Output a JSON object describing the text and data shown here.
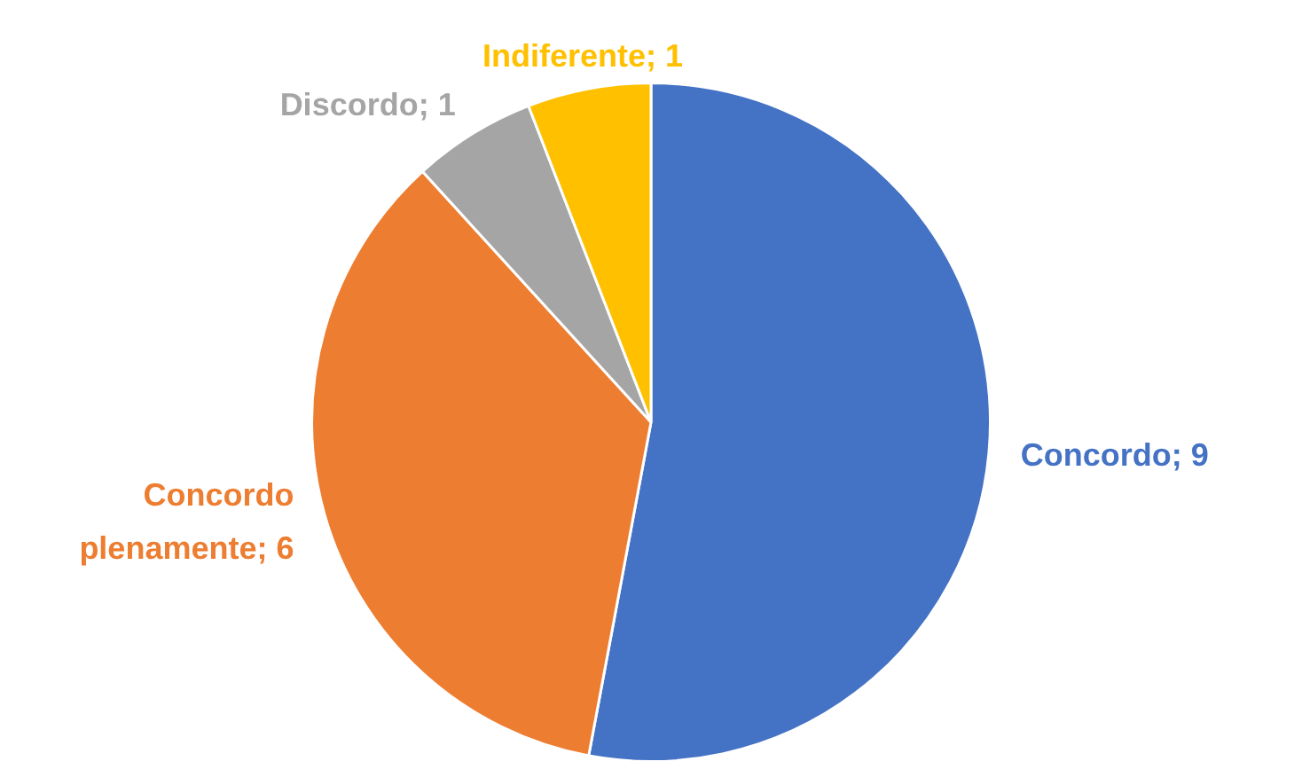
{
  "chart_data": {
    "type": "pie",
    "categories": [
      "Concordo; 9",
      "Concordo plenamente; 6",
      "Discordo; 1",
      "Indiferente; 1"
    ],
    "values": [
      9,
      6,
      1,
      1
    ],
    "colors": [
      "#4472c4",
      "#ed7d31",
      "#a5a5a5",
      "#ffc000"
    ],
    "legend": false
  }
}
